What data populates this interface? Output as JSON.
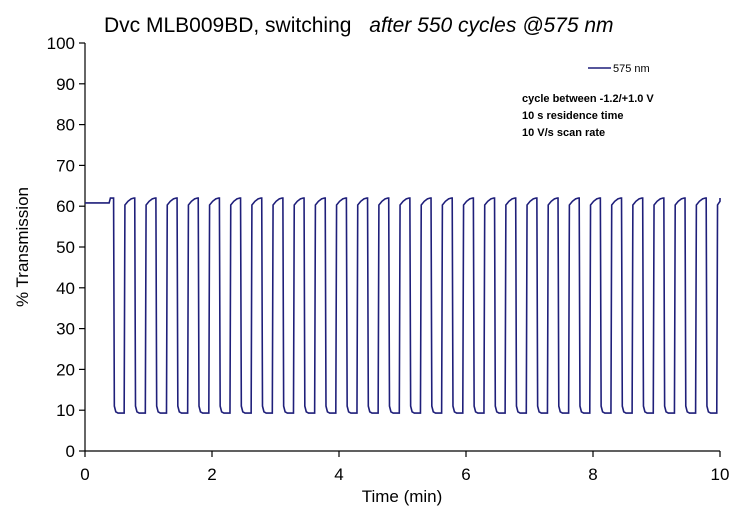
{
  "chart_data": {
    "type": "line",
    "title": "Dvc MLB009BD, switching",
    "title_suffix": "after 550 cycles @575 nm",
    "xlabel": "Time (min)",
    "ylabel": "% Transmission",
    "xlim": [
      0,
      10
    ],
    "ylim": [
      0,
      100
    ],
    "x_ticks": [
      0,
      2,
      4,
      6,
      8,
      10
    ],
    "y_ticks": [
      0,
      10,
      20,
      30,
      40,
      50,
      60,
      70,
      80,
      90,
      100
    ],
    "grid": false,
    "legend_position": "top-right",
    "annotations": [
      "cycle between -1.2/+1.0 V",
      "10 s residence time",
      "10 V/s scan rate"
    ],
    "series": [
      {
        "name": "575 nm",
        "color": "#1f1f7a",
        "baseline_value": 60.8,
        "baseline_until_min": 0.38,
        "bleached_peak": 62,
        "bleached_start": 60.3,
        "colored_start": 11,
        "colored_min": 9.3,
        "cycle_period_min": 0.3333,
        "half_period_min": 0.1667,
        "first_transition_min": 0.45,
        "cycles": 29
      }
    ]
  }
}
